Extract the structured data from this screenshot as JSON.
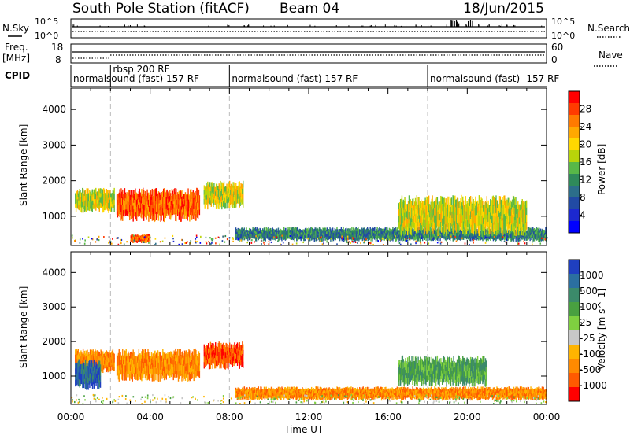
{
  "header": {
    "station": "South Pole Station (fitACF)",
    "beam": "Beam 04",
    "date": "18/Jun/2015"
  },
  "top_panels": {
    "nsky_label": "N.Sky",
    "nsky_ticks": [
      "10^5",
      "10^0"
    ],
    "nsearch_label": "N.Search",
    "nsearch_ticks": [
      "10^5",
      "10^0"
    ],
    "freq_label": "Freq.",
    "freq_unit": "[MHz]",
    "freq_ticks": [
      "18",
      "8"
    ],
    "nave_label": "Nave",
    "nave_ticks": [
      "60",
      "0"
    ],
    "cpid_label": "CPID",
    "cpid_segments": [
      {
        "label": "normalsound (fast) 157 RF",
        "start": 0.0
      },
      {
        "label": "rbsp 200 RF",
        "start": 2.0
      },
      {
        "label": "normalsound (fast) 157 RF",
        "start": 8.0
      },
      {
        "label": "normalsound (fast) -157 RF",
        "start": 18.0
      }
    ]
  },
  "power_colorbar": {
    "label": "Power [dB]",
    "ticks": [
      "28",
      "24",
      "20",
      "16",
      "12",
      "8",
      "4"
    ],
    "colors": [
      "#ff0000",
      "#ff3b00",
      "#ff7a00",
      "#ffa800",
      "#ffd800",
      "#b8d40a",
      "#58b848",
      "#2f8a5a",
      "#2c6e8a",
      "#214aa4",
      "#1c28d0",
      "#0000ff"
    ]
  },
  "velocity_colorbar": {
    "label": "Velocity [m s^-1]",
    "ticks": [
      "1000",
      "500",
      "100",
      "25",
      "-25",
      "-100",
      "-500",
      "-1000"
    ],
    "colors": [
      "#1f3fc0",
      "#2b6fa0",
      "#3b8a6a",
      "#49a040",
      "#7fd040",
      "#c8c8c8",
      "#ffb400",
      "#ff8a00",
      "#ff5a00",
      "#ff0000"
    ]
  },
  "chart_data": [
    {
      "type": "heatmap",
      "title": "Power",
      "xlabel": "Time UT",
      "ylabel": "Slant Range [km]",
      "xlim": [
        0,
        24
      ],
      "ylim": [
        180,
        4600
      ],
      "x_ticks": [
        "00:00",
        "04:00",
        "08:00",
        "12:00",
        "16:00",
        "20:00",
        "00:00"
      ],
      "y_ticks": [
        1000,
        2000,
        3000,
        4000
      ],
      "cpid_boundaries_hours": [
        2.0,
        8.0,
        18.0
      ],
      "echo_regions": [
        {
          "t_start": 0.2,
          "t_end": 2.2,
          "r_low": 1100,
          "r_high": 1800,
          "level": "medium"
        },
        {
          "t_start": 2.3,
          "t_end": 6.5,
          "r_low": 850,
          "r_high": 1800,
          "level": "high"
        },
        {
          "t_start": 6.7,
          "t_end": 8.7,
          "r_low": 1200,
          "r_high": 2000,
          "level": "medium"
        },
        {
          "t_start": 8.3,
          "t_end": 24.0,
          "r_low": 300,
          "r_high": 700,
          "level": "low"
        },
        {
          "t_start": 16.5,
          "t_end": 23.0,
          "r_low": 450,
          "r_high": 1600,
          "level": "medium"
        },
        {
          "t_start": 3.0,
          "t_end": 4.0,
          "r_low": 250,
          "r_high": 520,
          "level": "high"
        }
      ]
    },
    {
      "type": "heatmap",
      "title": "Velocity",
      "xlabel": "Time UT",
      "ylabel": "Slant Range [km]",
      "xlim": [
        0,
        24
      ],
      "ylim": [
        180,
        4600
      ],
      "x_ticks": [
        "00:00",
        "04:00",
        "08:00",
        "12:00",
        "16:00",
        "20:00",
        "00:00"
      ],
      "y_ticks": [
        1000,
        2000,
        3000,
        4000
      ],
      "cpid_boundaries_hours": [
        2.0,
        8.0,
        18.0
      ],
      "echo_regions": [
        {
          "t_start": 0.2,
          "t_end": 2.2,
          "r_low": 1100,
          "r_high": 1800,
          "velocity": "-100"
        },
        {
          "t_start": 2.3,
          "t_end": 6.5,
          "r_low": 850,
          "r_high": 1800,
          "velocity": "-100"
        },
        {
          "t_start": 6.7,
          "t_end": 8.7,
          "r_low": 1200,
          "r_high": 2000,
          "velocity": "-500"
        },
        {
          "t_start": 8.3,
          "t_end": 24.0,
          "r_low": 300,
          "r_high": 700,
          "velocity": "-100"
        },
        {
          "t_start": 16.5,
          "t_end": 21.0,
          "r_low": 700,
          "r_high": 1600,
          "velocity": "100"
        },
        {
          "t_start": 0.2,
          "t_end": 1.5,
          "r_low": 600,
          "r_high": 1500,
          "velocity": "500"
        }
      ]
    }
  ]
}
